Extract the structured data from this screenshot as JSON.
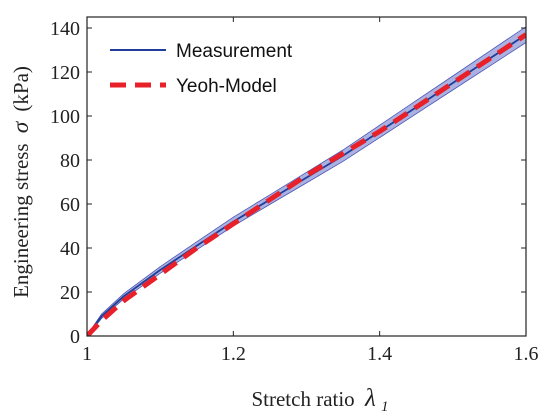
{
  "chart_data": {
    "type": "line",
    "xlabel_text": "Stretch ratio",
    "xlabel_symbol": "λ",
    "xlabel_subscript": "1",
    "ylabel_text": "Engineering stress",
    "ylabel_symbol": "σ",
    "ylabel_unit": "(kPa)",
    "xlim": [
      1,
      1.6
    ],
    "ylim": [
      0,
      145
    ],
    "xticks": [
      1,
      1.2,
      1.4,
      1.6
    ],
    "xtick_labels": [
      "1",
      "1.2",
      "1.4",
      "1.6"
    ],
    "yticks": [
      0,
      20,
      40,
      60,
      80,
      100,
      120,
      140
    ],
    "ytick_labels": [
      "0",
      "20",
      "40",
      "60",
      "80",
      "100",
      "120",
      "140"
    ],
    "grid": false,
    "legend_position": "top-left",
    "series": [
      {
        "name": "Measurement",
        "style": "solid",
        "color": "#1f3d99",
        "band_color": "#8f97d6",
        "x": [
          1.0,
          1.02,
          1.05,
          1.1,
          1.15,
          1.2,
          1.25,
          1.3,
          1.35,
          1.4,
          1.45,
          1.5,
          1.55,
          1.6
        ],
        "y": [
          0,
          9,
          18,
          30,
          41,
          52,
          62,
          72,
          82,
          93,
          104,
          115,
          126,
          137
        ],
        "band_halfwidth": [
          0.3,
          1,
          1.2,
          1.5,
          1.8,
          2,
          2.2,
          2.4,
          2.6,
          2.8,
          3,
          3.2,
          3.4,
          3.6
        ]
      },
      {
        "name": "Yeoh-Model",
        "style": "dashed",
        "color": "#e8202a",
        "x": [
          1.0,
          1.02,
          1.05,
          1.1,
          1.15,
          1.2,
          1.25,
          1.3,
          1.35,
          1.4,
          1.45,
          1.5,
          1.55,
          1.6
        ],
        "y": [
          0,
          7,
          16,
          28,
          40,
          51,
          62,
          73,
          83,
          93,
          104,
          115,
          126,
          137
        ]
      }
    ]
  }
}
